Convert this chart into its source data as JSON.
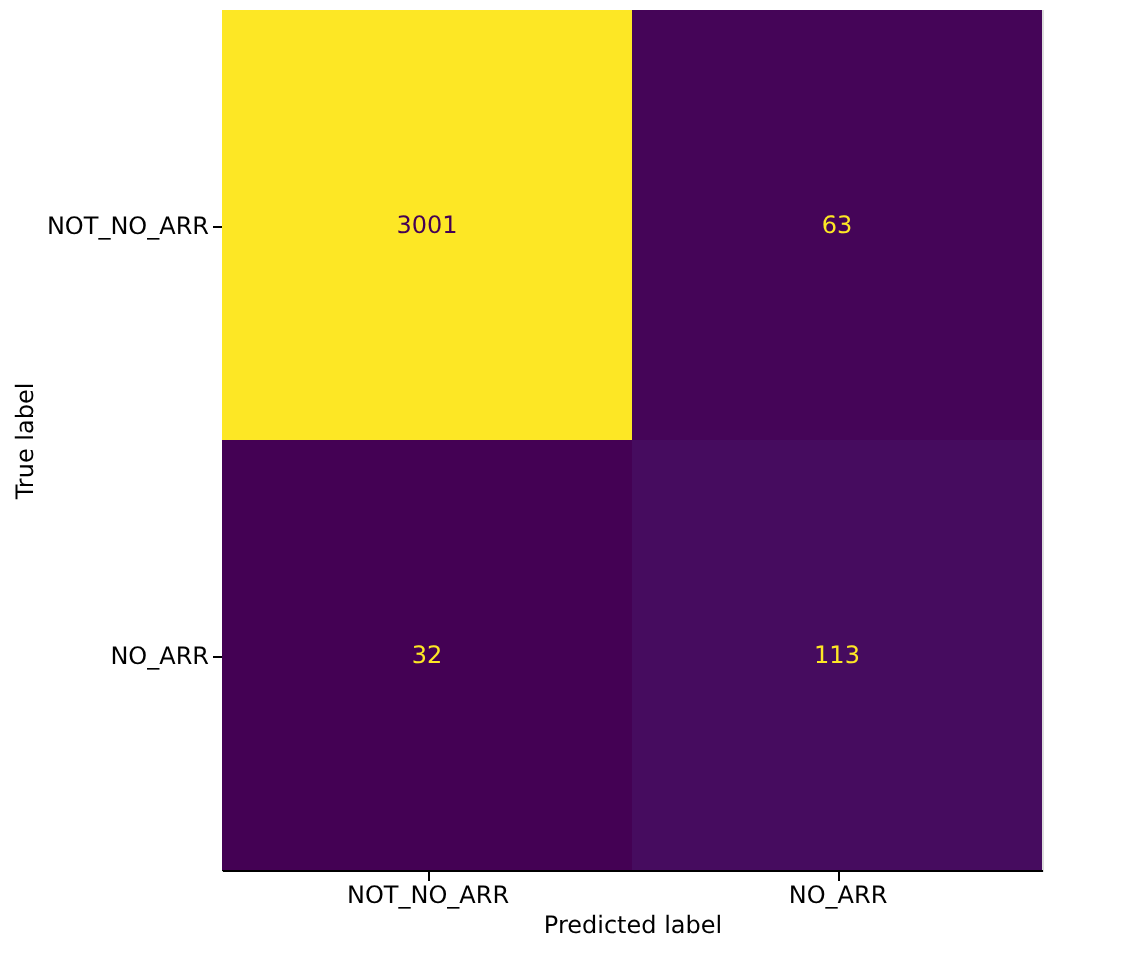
{
  "chart_data": {
    "type": "heatmap",
    "xlabel": "Predicted label",
    "ylabel": "True label",
    "categories": [
      "NOT_NO_ARR",
      "NO_ARR"
    ],
    "y_categories": [
      "NOT_NO_ARR",
      "NO_ARR"
    ],
    "cells": [
      [
        3001,
        63
      ],
      [
        32,
        113
      ]
    ],
    "data_labels": true,
    "legend": false
  }
}
